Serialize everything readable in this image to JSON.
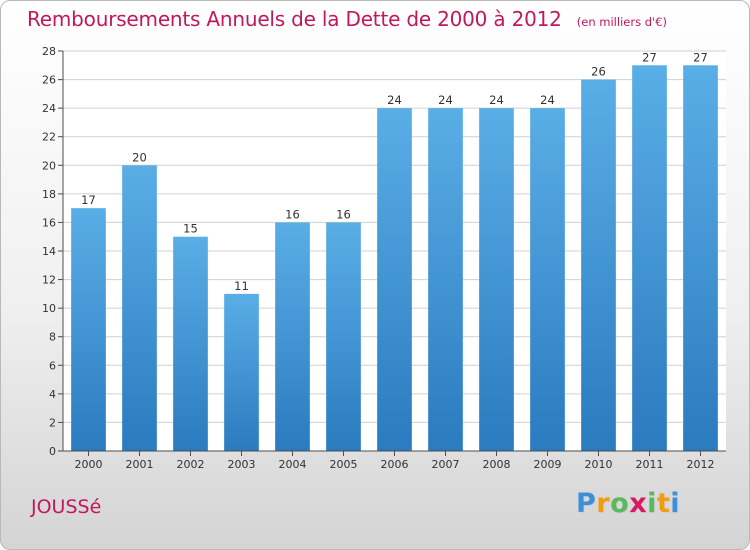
{
  "header": {
    "title": "Remboursements Annuels de la Dette de 2000 à 2012",
    "unit": "(en milliers d'€)"
  },
  "footer": {
    "commune": "JOUSSé",
    "logo": {
      "letters": [
        "P",
        "r",
        "o",
        "x",
        "i",
        "t",
        "i"
      ],
      "colors": [
        "#3f8fd6",
        "#f39c12",
        "#5cb85c",
        "#d81b60",
        "#5cb85c",
        "#f39c12",
        "#3f8fd6"
      ]
    }
  },
  "chart_data": {
    "type": "bar",
    "title": "Remboursements Annuels de la Dette de 2000 à 2012",
    "unit": "(en milliers d'€)",
    "categories": [
      "2000",
      "2001",
      "2002",
      "2003",
      "2004",
      "2005",
      "2006",
      "2007",
      "2008",
      "2009",
      "2010",
      "2011",
      "2012"
    ],
    "values": [
      17,
      20,
      15,
      11,
      16,
      16,
      24,
      24,
      24,
      24,
      26,
      27,
      27
    ],
    "ylim": [
      0,
      28
    ],
    "yticks": [
      0,
      2,
      4,
      6,
      8,
      10,
      12,
      14,
      16,
      18,
      20,
      22,
      24,
      26,
      28
    ],
    "grid": true,
    "data_labels": true,
    "colors": {
      "bar_light": "#5aaee6",
      "bar_dark": "#2a7bbf",
      "grid": "#d0d0d0",
      "axis": "#4d4d4d",
      "plot_bg": "#ffffff"
    }
  }
}
